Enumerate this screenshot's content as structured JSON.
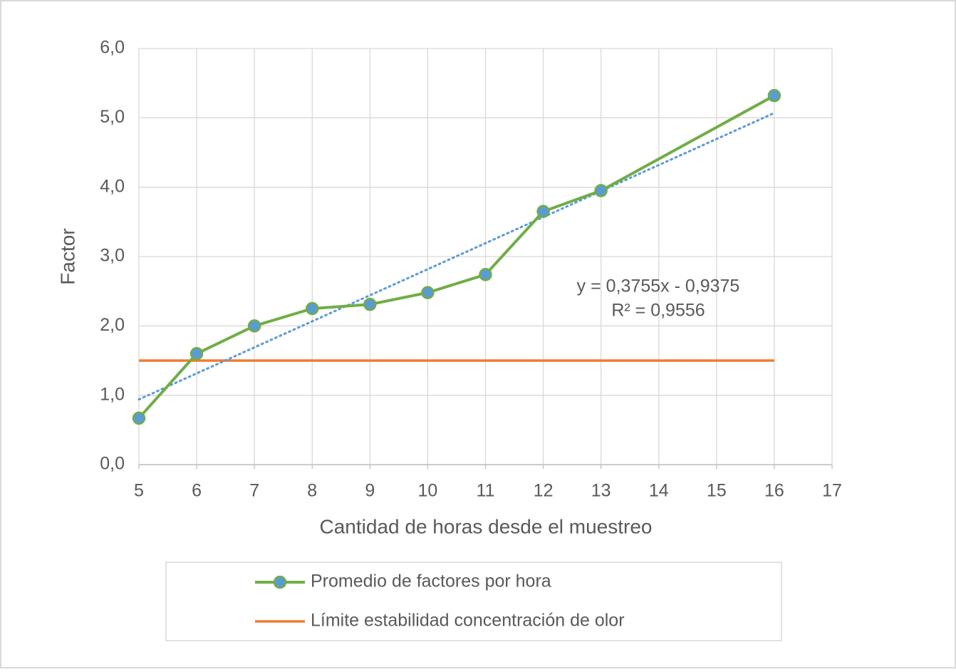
{
  "chart_data": {
    "type": "line",
    "x_label": "Cantidad de horas desde el muestreo",
    "y_label": "Factor",
    "xlim": [
      5,
      17
    ],
    "xticks": [
      5,
      6,
      7,
      8,
      9,
      10,
      11,
      12,
      13,
      14,
      15,
      16,
      17
    ],
    "ylim": [
      0,
      6
    ],
    "yticks": [
      {
        "value": 0,
        "label": "0,0"
      },
      {
        "value": 1,
        "label": "1,0"
      },
      {
        "value": 2,
        "label": "2,0"
      },
      {
        "value": 3,
        "label": "3,0"
      },
      {
        "value": 4,
        "label": "4,0"
      },
      {
        "value": 5,
        "label": "5,0"
      },
      {
        "value": 6,
        "label": "6,0"
      }
    ],
    "grid": true,
    "legend_position": "bottom",
    "series": [
      {
        "name": "Promedio de factores por hora",
        "color": "#70ad47",
        "marker_color": "#5b9bd5",
        "x": [
          5,
          6,
          7,
          8,
          9,
          10,
          11,
          12,
          13,
          16
        ],
        "values": [
          0.67,
          1.6,
          2.0,
          2.25,
          2.31,
          2.48,
          2.74,
          3.65,
          3.95,
          5.32
        ]
      },
      {
        "name": "Límite estabilidad concentración de olor",
        "color": "#ed7d31",
        "x": [
          5,
          16
        ],
        "values": [
          1.5,
          1.5
        ]
      }
    ],
    "trendline": {
      "color": "#5b9bd5",
      "x": [
        5,
        16
      ],
      "values": [
        0.94,
        5.07
      ],
      "annotation": [
        "y = 0,3755x - 0,9375",
        "R² = 0,9556"
      ]
    }
  }
}
